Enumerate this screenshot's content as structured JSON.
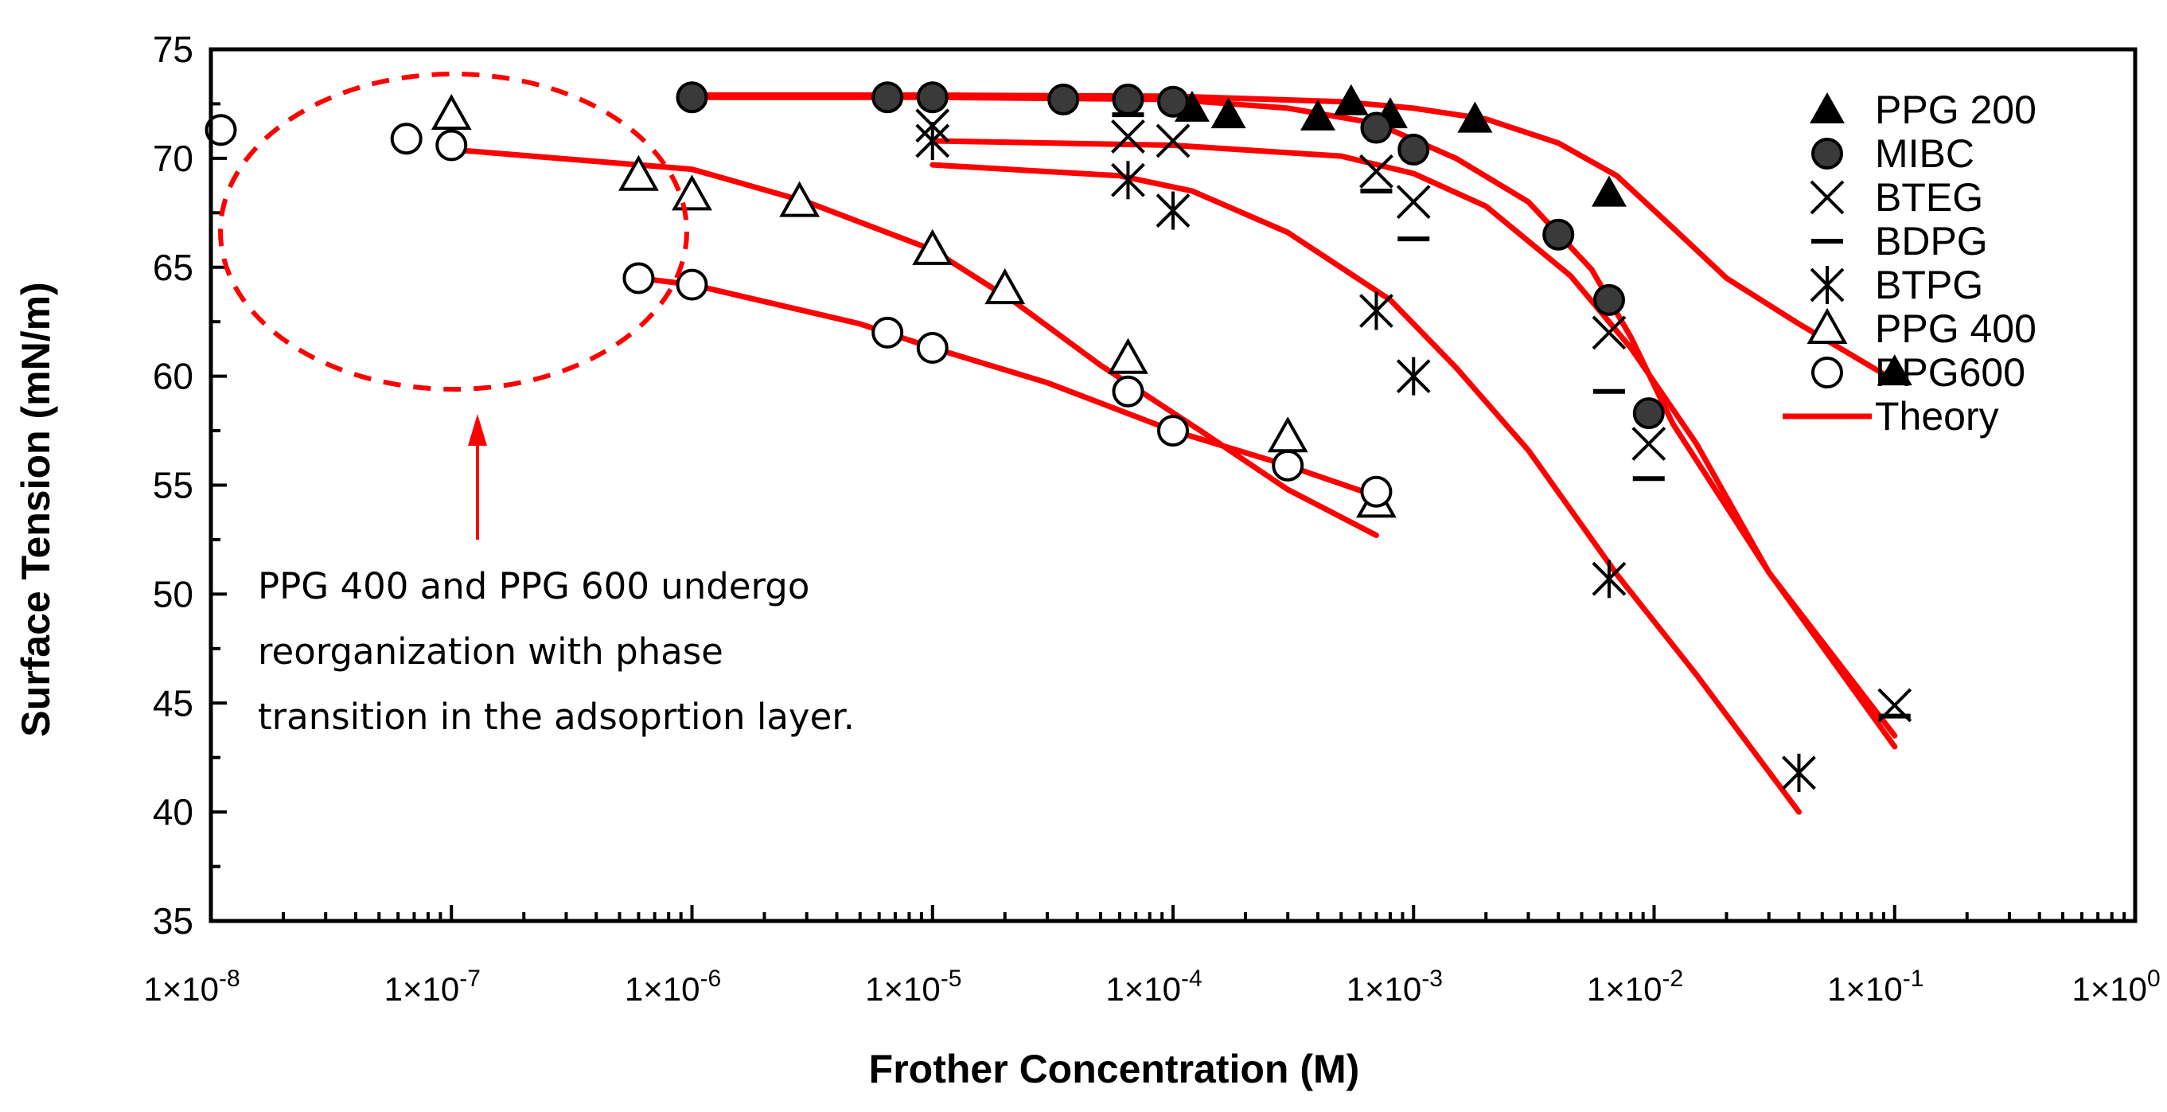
{
  "chart_data": {
    "type": "scatter",
    "title": "",
    "xlabel": "Frother Concentration (M)",
    "ylabel": "Surface Tension (mN/m)",
    "xscale": "log",
    "xlim": [
      1e-08,
      1
    ],
    "ylim": [
      35,
      75
    ],
    "yticks": [
      35,
      40,
      45,
      50,
      55,
      60,
      65,
      70,
      75
    ],
    "xticks": [
      {
        "value": 1e-08,
        "label": "1×10-8",
        "base": "1×10",
        "exp": "-8"
      },
      {
        "value": 1e-07,
        "label": "1×10-7",
        "base": "1×10",
        "exp": "-7"
      },
      {
        "value": 1e-06,
        "label": "1×10-6",
        "base": "1×10",
        "exp": "-6"
      },
      {
        "value": 1e-05,
        "label": "1×10-5",
        "base": "1×10",
        "exp": "-5"
      },
      {
        "value": 0.0001,
        "label": "1×10-4",
        "base": "1×10",
        "exp": "-4"
      },
      {
        "value": 0.001,
        "label": "1×10-3",
        "base": "1×10",
        "exp": "-3"
      },
      {
        "value": 0.01,
        "label": "1×10-2",
        "base": "1×10",
        "exp": "-2"
      },
      {
        "value": 0.1,
        "label": "1×10-1",
        "base": "1×10",
        "exp": "-1"
      },
      {
        "value": 1,
        "label": "1×100",
        "base": "1×10",
        "exp": "0"
      }
    ],
    "legend_position": "top-right",
    "series": [
      {
        "name": "PPG 200",
        "marker": "filled-triangle",
        "points": [
          [
            0.00012,
            72.3
          ],
          [
            0.00017,
            72.0
          ],
          [
            0.0004,
            71.9
          ],
          [
            0.00055,
            72.6
          ],
          [
            0.0008,
            72.0
          ],
          [
            0.0018,
            71.8
          ],
          [
            0.0065,
            68.4
          ],
          [
            0.1,
            60.2
          ]
        ]
      },
      {
        "name": "MIBC",
        "marker": "filled-circle",
        "points": [
          [
            1e-06,
            72.8
          ],
          [
            6.5e-06,
            72.8
          ],
          [
            1e-05,
            72.8
          ],
          [
            3.5e-05,
            72.7
          ],
          [
            6.5e-05,
            72.7
          ],
          [
            0.0001,
            72.6
          ],
          [
            0.0007,
            71.4
          ],
          [
            0.001,
            70.4
          ],
          [
            0.004,
            66.5
          ],
          [
            0.0065,
            63.5
          ],
          [
            0.0095,
            58.3
          ]
        ]
      },
      {
        "name": "BTEG",
        "marker": "x",
        "points": [
          [
            1e-05,
            71.5
          ],
          [
            6.5e-05,
            71.0
          ],
          [
            0.0001,
            70.8
          ],
          [
            0.0007,
            69.4
          ],
          [
            0.001,
            68.0
          ],
          [
            0.0065,
            62.0
          ],
          [
            0.0095,
            56.9
          ],
          [
            0.1,
            44.9
          ]
        ]
      },
      {
        "name": "BDPG",
        "marker": "dash",
        "points": [
          [
            6.5e-05,
            72.0
          ],
          [
            0.0007,
            68.5
          ],
          [
            0.001,
            66.3
          ],
          [
            0.0065,
            59.3
          ],
          [
            0.0095,
            55.3
          ],
          [
            0.1,
            44.4
          ]
        ]
      },
      {
        "name": "BTPG",
        "marker": "asterisk",
        "points": [
          [
            1e-05,
            70.8
          ],
          [
            6.5e-05,
            69.0
          ],
          [
            0.0001,
            67.6
          ],
          [
            0.0007,
            63.0
          ],
          [
            0.001,
            60.0
          ],
          [
            0.0065,
            50.7
          ],
          [
            0.04,
            41.8
          ]
        ]
      },
      {
        "name": "PPG 400",
        "marker": "open-triangle",
        "points": [
          [
            1e-07,
            72.0
          ],
          [
            6e-07,
            69.2
          ],
          [
            1e-06,
            68.3
          ],
          [
            2.8e-06,
            68.0
          ],
          [
            1e-05,
            65.8
          ],
          [
            2e-05,
            64.0
          ],
          [
            6.5e-05,
            60.8
          ],
          [
            0.0003,
            57.2
          ],
          [
            0.0007,
            54.2
          ]
        ]
      },
      {
        "name": "PPG600",
        "marker": "open-circle",
        "points": [
          [
            1.1e-08,
            71.3
          ],
          [
            6.5e-08,
            70.9
          ],
          [
            1e-07,
            70.6
          ],
          [
            6e-07,
            64.5
          ],
          [
            1e-06,
            64.2
          ],
          [
            6.5e-06,
            62.0
          ],
          [
            1e-05,
            61.3
          ],
          [
            6.5e-05,
            59.3
          ],
          [
            0.0001,
            57.5
          ],
          [
            0.0003,
            55.9
          ],
          [
            0.0007,
            54.7
          ]
        ]
      },
      {
        "name": "Theory",
        "marker": "line",
        "color": "#ff0000",
        "curves": [
          [
            [
              1e-06,
              72.9
            ],
            [
              1e-05,
              72.9
            ],
            [
              0.0001,
              72.85
            ],
            [
              0.0005,
              72.6
            ],
            [
              0.001,
              72.3
            ],
            [
              0.002,
              71.8
            ],
            [
              0.004,
              70.7
            ],
            [
              0.007,
              69.2
            ],
            [
              0.012,
              66.8
            ],
            [
              0.02,
              64.5
            ],
            [
              0.04,
              62.4
            ],
            [
              0.1,
              59.8
            ]
          ],
          [
            [
              1e-06,
              72.8
            ],
            [
              1e-05,
              72.8
            ],
            [
              0.0001,
              72.7
            ],
            [
              0.0003,
              72.3
            ],
            [
              0.0007,
              71.6
            ],
            [
              0.0015,
              70.0
            ],
            [
              0.003,
              68.0
            ],
            [
              0.0055,
              64.9
            ],
            [
              0.008,
              61.8
            ],
            [
              0.012,
              57.8
            ],
            [
              0.03,
              51.0
            ],
            [
              0.1,
              43.0
            ]
          ],
          [
            [
              1e-05,
              70.8
            ],
            [
              0.0001,
              70.6
            ],
            [
              0.0005,
              70.1
            ],
            [
              0.001,
              69.3
            ],
            [
              0.002,
              67.8
            ],
            [
              0.0045,
              64.6
            ],
            [
              0.008,
              61.3
            ],
            [
              0.015,
              56.9
            ],
            [
              0.03,
              51.0
            ],
            [
              0.1,
              43.5
            ]
          ],
          [
            [
              1e-05,
              69.7
            ],
            [
              6e-05,
              69.2
            ],
            [
              0.00012,
              68.5
            ],
            [
              0.0003,
              66.6
            ],
            [
              0.0008,
              63.5
            ],
            [
              0.0015,
              60.4
            ],
            [
              0.003,
              56.6
            ],
            [
              0.007,
              50.9
            ],
            [
              0.015,
              46.3
            ],
            [
              0.04,
              40.0
            ]
          ],
          [
            [
              1e-07,
              70.4
            ],
            [
              1e-06,
              69.5
            ],
            [
              3e-06,
              68.0
            ],
            [
              1e-05,
              65.8
            ],
            [
              2.2e-05,
              63.4
            ],
            [
              5e-05,
              60.5
            ],
            [
              0.00013,
              57.5
            ],
            [
              0.0003,
              54.8
            ],
            [
              0.0007,
              52.7
            ]
          ],
          [
            [
              6e-07,
              64.5
            ],
            [
              1e-06,
              64.2
            ],
            [
              5e-06,
              62.4
            ],
            [
              1e-05,
              61.3
            ],
            [
              3e-05,
              59.7
            ],
            [
              0.0001,
              57.5
            ],
            [
              0.0003,
              55.9
            ],
            [
              0.0007,
              54.5
            ]
          ]
        ]
      }
    ],
    "annotation": {
      "lines": [
        "PPG 400 and PPG 600 undergo",
        "reorganization with phase",
        "transition in the adsoprtion layer."
      ],
      "highlight": "dashed red ellipse around low-concentration PPG 400 / PPG600 points with arrow pointing to it"
    },
    "colors": {
      "theory": "#ff0000",
      "marker": "#000000",
      "annotation": "#ff0000"
    }
  }
}
